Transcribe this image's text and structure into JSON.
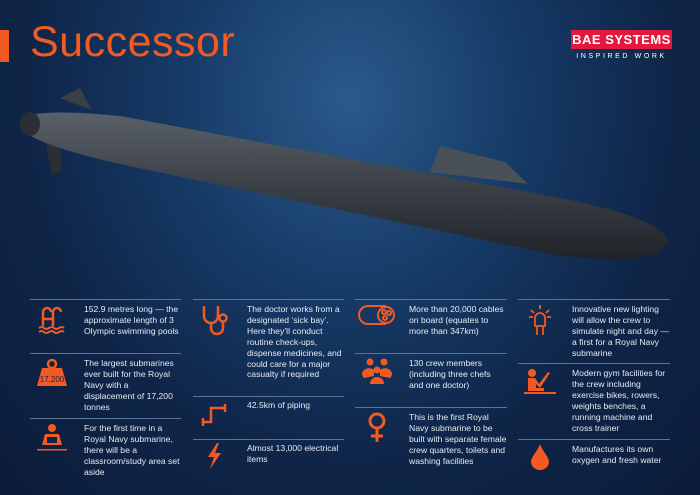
{
  "header": {
    "title": "Successor"
  },
  "logo": {
    "brand": "BAE SYSTEMS",
    "tagline": "INSPIRED WORK"
  },
  "accent": "#f15a22",
  "facts": [
    {
      "icon": "swimming-pool-icon",
      "text": "152.9 metres long — the approximate length of 3 Olympic swimming pools"
    },
    {
      "icon": "weight-icon",
      "icon_label": "17,200",
      "text": "The largest submarines ever built for the Royal Navy with a displacement of 17,200 tonnes"
    },
    {
      "icon": "reading-person-icon",
      "text": "For the first time in a Royal Navy submarine, there will be a classroom/study area set aside"
    },
    {
      "icon": "stethoscope-icon",
      "text": "The doctor works from a designated ‘sick bay’. Here they’ll conduct routine check-ups, dispense medicines, and could care for a major casualty if required"
    },
    {
      "icon": "pipe-icon",
      "text": "42.5km of piping"
    },
    {
      "icon": "lightning-icon",
      "text": "Almost 13,000 electrical items"
    },
    {
      "icon": "cable-icon",
      "text": "More than 20,000 cables on board (equates to more than 347km)"
    },
    {
      "icon": "crew-icon",
      "text": "130 crew members (including three chefs and one doctor)"
    },
    {
      "icon": "female-symbol-icon",
      "text": "This is the first Royal Navy submarine to be built with separate female crew quarters, toilets and washing facilities"
    },
    {
      "icon": "light-bulb-icon",
      "text": "Innovative new lighting will allow the crew to simulate night and day — a first for a Royal Navy submarine"
    },
    {
      "icon": "rowing-icon",
      "text": "Modern gym facilities for the crew including exercise bikes, rowers, weights benches, a running machine and cross trainer"
    },
    {
      "icon": "water-drop-icon",
      "text": "Manufactures its own oxygen and fresh water"
    }
  ]
}
